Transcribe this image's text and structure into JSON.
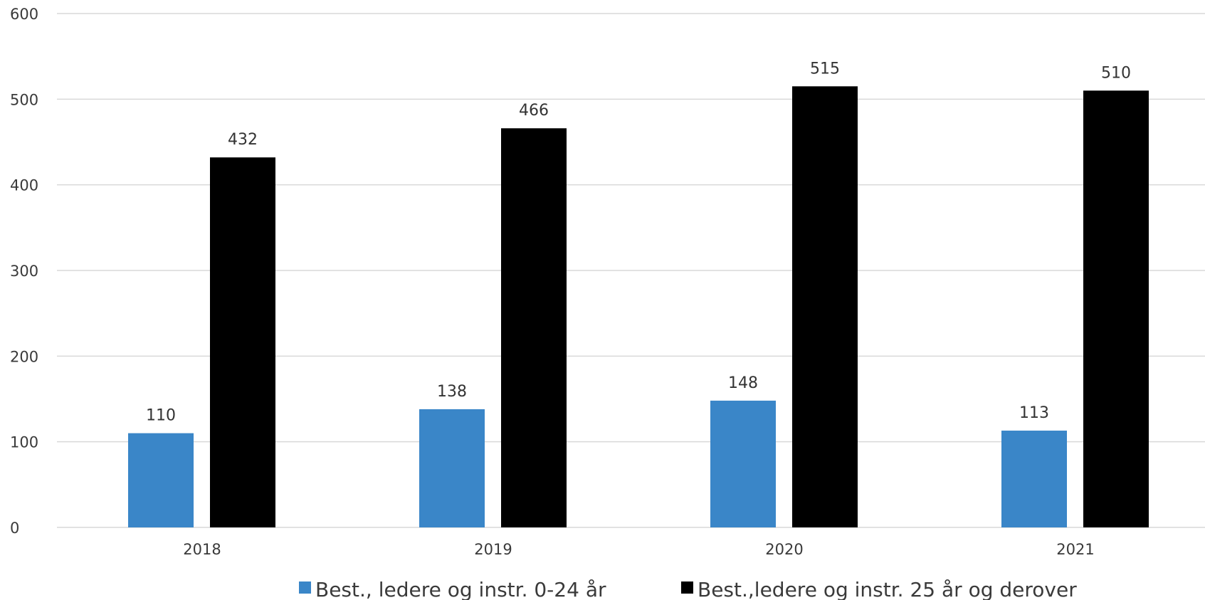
{
  "chart_data": {
    "type": "bar",
    "title": "",
    "xlabel": "",
    "ylabel": "",
    "categories": [
      "2018",
      "2019",
      "2020",
      "2021"
    ],
    "series": [
      {
        "name": "Best., ledere og instr. 0-24 år",
        "color": "#3a86c8",
        "values": [
          110,
          138,
          148,
          113
        ]
      },
      {
        "name": "Best.,ledere og instr. 25 år og derover",
        "color": "#000000",
        "values": [
          432,
          466,
          515,
          510
        ]
      }
    ],
    "ylim": [
      0,
      600
    ],
    "yticks": [
      "0",
      "100",
      "200",
      "300",
      "400",
      "500",
      "600"
    ],
    "grid": true,
    "data_labels": true,
    "legend_position": "bottom"
  }
}
